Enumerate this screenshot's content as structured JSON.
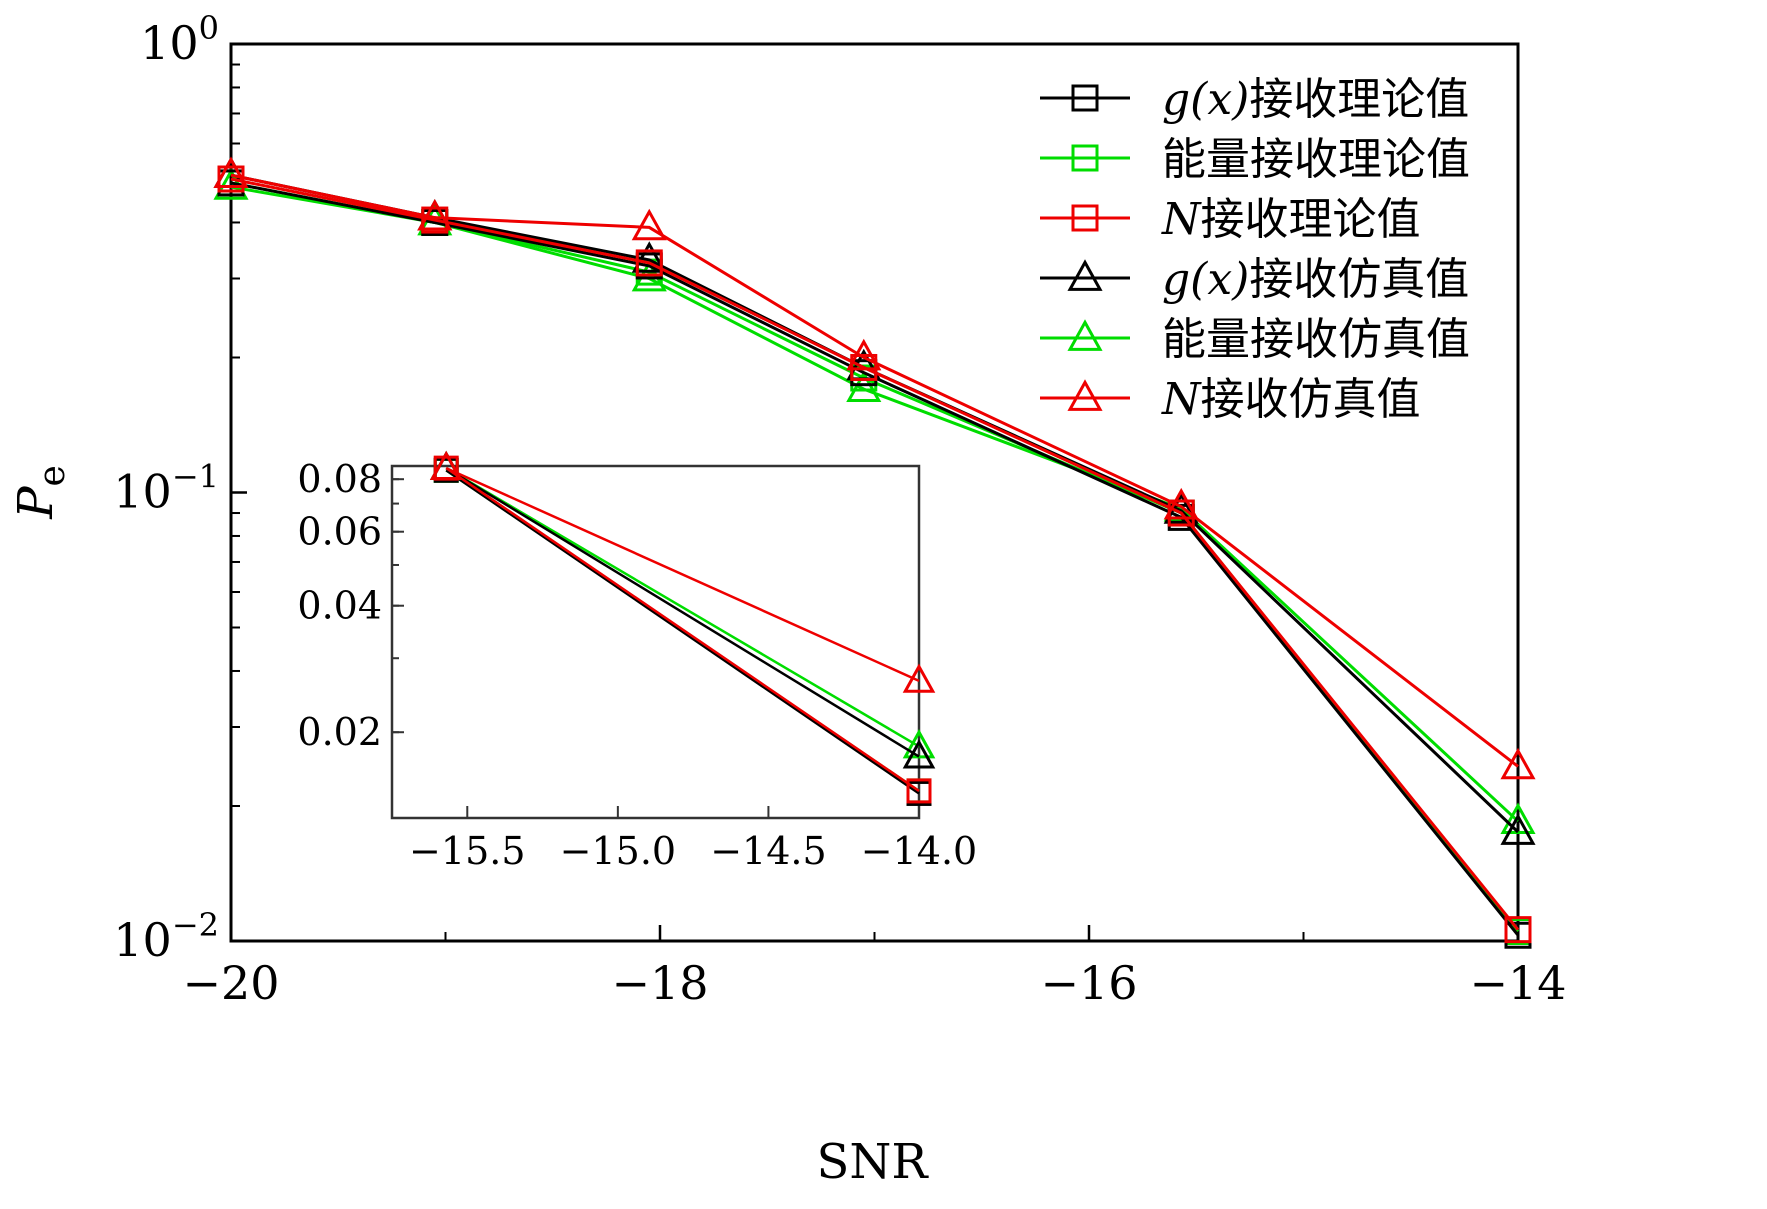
{
  "chart_data": [
    {
      "id": "main",
      "type": "line",
      "xlabel": "SNR",
      "ylabel": "P",
      "ylabel_sub": "e",
      "xlim": [
        -20,
        -14
      ],
      "ylim": [
        0.01,
        1
      ],
      "yscale": "log",
      "xticks": [
        {
          "value": -20,
          "label": "−20"
        },
        {
          "value": -18,
          "label": "−18"
        },
        {
          "value": -16,
          "label": "−16"
        },
        {
          "value": -14,
          "label": "−14"
        }
      ],
      "yticks": [
        {
          "value": 1,
          "base": "10",
          "exp": "0"
        },
        {
          "value": 0.1,
          "base": "10",
          "exp": "−1"
        },
        {
          "value": 0.01,
          "base": "10",
          "exp": "−2"
        }
      ],
      "legend_position": "top-right",
      "series": [
        {
          "name": "能量接收理论值",
          "legend_prefix": "",
          "color": "#00dd00",
          "marker": "square",
          "x": [
            -20,
            -19.05,
            -18.05,
            -17.05,
            -15.57,
            -14
          ],
          "y": [
            0.49,
            0.4,
            0.31,
            0.18,
            0.09,
            0.0105
          ]
        },
        {
          "name": "能量接收仿真值",
          "legend_prefix": "",
          "color": "#00dd00",
          "marker": "triangle",
          "x": [
            -20,
            -19.05,
            -18.05,
            -17.05,
            -15.57,
            -14
          ],
          "y": [
            0.48,
            0.4,
            0.3,
            0.17,
            0.092,
            0.0185
          ]
        },
        {
          "name": "接收理论值",
          "legend_prefix": "g(x)",
          "color": "#000000",
          "marker": "square",
          "x": [
            -20,
            -19.05,
            -18.05,
            -17.05,
            -15.57,
            -14
          ],
          "y": [
            0.49,
            0.4,
            0.32,
            0.185,
            0.088,
            0.0103
          ]
        },
        {
          "name": "接收仿真值",
          "legend_prefix": "g(x)",
          "color": "#000000",
          "marker": "triangle",
          "x": [
            -20,
            -19.05,
            -18.05,
            -17.05,
            -15.57,
            -14
          ],
          "y": [
            0.51,
            0.41,
            0.33,
            0.19,
            0.091,
            0.0175
          ]
        },
        {
          "name": "接收理论值",
          "legend_prefix": "N",
          "color": "#ee0000",
          "marker": "square",
          "x": [
            -20,
            -19.05,
            -18.05,
            -17.05,
            -15.57,
            -14
          ],
          "y": [
            0.5,
            0.405,
            0.325,
            0.19,
            0.09,
            0.0106
          ]
        },
        {
          "name": "接收仿真值",
          "legend_prefix": "N",
          "color": "#ee0000",
          "marker": "triangle",
          "x": [
            -20,
            -19.05,
            -18.05,
            -17.05,
            -15.57,
            -14
          ],
          "y": [
            0.51,
            0.41,
            0.39,
            0.2,
            0.093,
            0.0245
          ]
        }
      ],
      "legend_order": [
        2,
        0,
        4,
        3,
        1,
        5
      ]
    },
    {
      "id": "inset",
      "type": "line",
      "xlim": [
        -15.75,
        -14
      ],
      "ylim": [
        0.0125,
        0.086
      ],
      "yscale": "log",
      "xticks": [
        {
          "value": -15.5,
          "label": "−15.5"
        },
        {
          "value": -15.0,
          "label": "−15.0"
        },
        {
          "value": -14.5,
          "label": "−14.5"
        },
        {
          "value": -14.0,
          "label": "−14.0"
        }
      ],
      "yticks": [
        {
          "value": 0.08,
          "label": "0.08"
        },
        {
          "value": 0.06,
          "label": "0.06"
        },
        {
          "value": 0.04,
          "label": "0.04"
        },
        {
          "value": 0.02,
          "label": "0.02"
        }
      ],
      "series": [
        {
          "ref": 0,
          "x": [
            -15.57,
            -14
          ],
          "y": [
            0.084,
            0.0145
          ]
        },
        {
          "ref": 1,
          "x": [
            -15.57,
            -14
          ],
          "y": [
            0.085,
            0.0185
          ]
        },
        {
          "ref": 2,
          "x": [
            -15.57,
            -14
          ],
          "y": [
            0.084,
            0.0143
          ]
        },
        {
          "ref": 3,
          "x": [
            -15.57,
            -14
          ],
          "y": [
            0.085,
            0.0175
          ]
        },
        {
          "ref": 4,
          "x": [
            -15.57,
            -14
          ],
          "y": [
            0.085,
            0.0145
          ]
        },
        {
          "ref": 5,
          "x": [
            -15.57,
            -14
          ],
          "y": [
            0.085,
            0.0265
          ]
        }
      ]
    }
  ]
}
